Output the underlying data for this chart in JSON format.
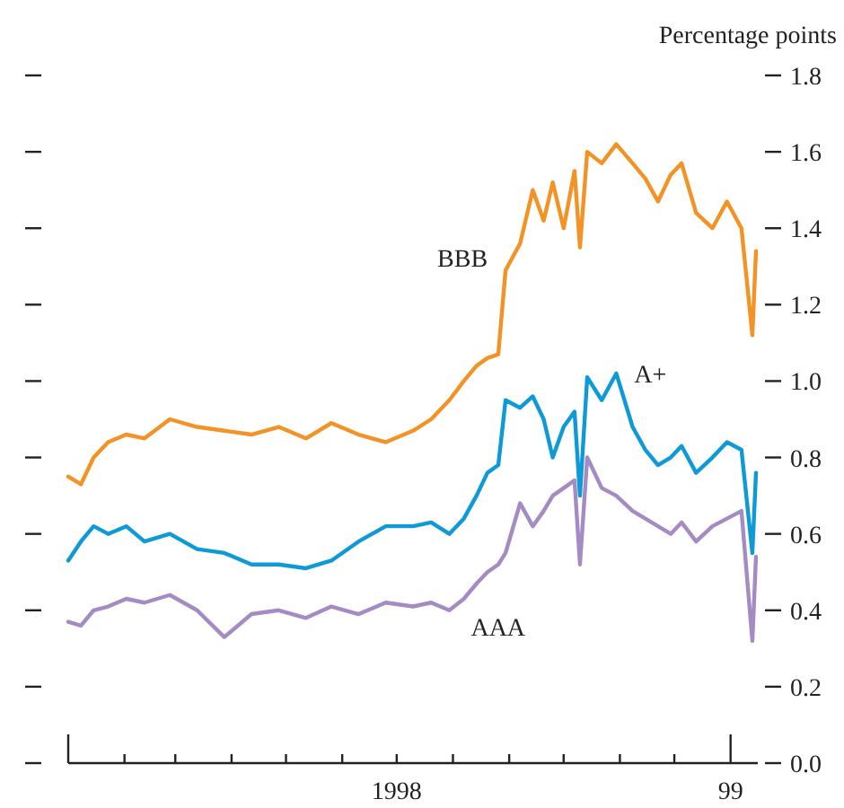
{
  "chart_data": {
    "type": "line",
    "ylabel": "Percentage points",
    "x": [
      "1998-01-01",
      "1998-01-08",
      "1998-01-15",
      "1998-01-23",
      "1998-02-02",
      "1998-02-12",
      "1998-02-26",
      "1998-03-13",
      "1998-03-28",
      "1998-04-12",
      "1998-04-27",
      "1998-05-12",
      "1998-05-26",
      "1998-06-10",
      "1998-06-25",
      "1998-07-10",
      "1998-07-20",
      "1998-07-30",
      "1998-08-07",
      "1998-08-14",
      "1998-08-20",
      "1998-08-26",
      "1998-08-30",
      "1998-09-07",
      "1998-09-14",
      "1998-09-20",
      "1998-09-25",
      "1998-10-01",
      "1998-10-07",
      "1998-10-10",
      "1998-10-14",
      "1998-10-22",
      "1998-10-30",
      "1998-11-08",
      "1998-11-15",
      "1998-11-22",
      "1998-11-29",
      "1998-12-05",
      "1998-12-13",
      "1998-12-22",
      "1998-12-30",
      "1999-01-07",
      "1999-01-13",
      "1999-01-15"
    ],
    "series": [
      {
        "name": "BBB",
        "color": "#f39325",
        "values": [
          0.75,
          0.73,
          0.8,
          0.84,
          0.86,
          0.85,
          0.9,
          0.88,
          0.87,
          0.86,
          0.88,
          0.85,
          0.89,
          0.86,
          0.84,
          0.87,
          0.9,
          0.95,
          1.0,
          1.04,
          1.06,
          1.07,
          1.29,
          1.36,
          1.5,
          1.42,
          1.52,
          1.4,
          1.55,
          1.35,
          1.6,
          1.57,
          1.62,
          1.57,
          1.53,
          1.47,
          1.54,
          1.57,
          1.44,
          1.4,
          1.47,
          1.4,
          1.12,
          1.34
        ]
      },
      {
        "name": "A+",
        "color": "#0e9ad7",
        "values": [
          0.53,
          0.58,
          0.62,
          0.6,
          0.62,
          0.58,
          0.6,
          0.56,
          0.55,
          0.52,
          0.52,
          0.51,
          0.53,
          0.58,
          0.62,
          0.62,
          0.63,
          0.6,
          0.64,
          0.7,
          0.76,
          0.78,
          0.95,
          0.93,
          0.96,
          0.9,
          0.8,
          0.88,
          0.92,
          0.7,
          1.01,
          0.95,
          1.02,
          0.88,
          0.82,
          0.78,
          0.8,
          0.83,
          0.76,
          0.8,
          0.84,
          0.82,
          0.55,
          0.76
        ]
      },
      {
        "name": "AAA",
        "color": "#a48bc3",
        "values": [
          0.37,
          0.36,
          0.4,
          0.41,
          0.43,
          0.42,
          0.44,
          0.4,
          0.33,
          0.39,
          0.4,
          0.38,
          0.41,
          0.39,
          0.42,
          0.41,
          0.42,
          0.4,
          0.43,
          0.47,
          0.5,
          0.52,
          0.55,
          0.68,
          0.62,
          0.66,
          0.7,
          0.72,
          0.74,
          0.52,
          0.8,
          0.72,
          0.7,
          0.66,
          0.64,
          0.62,
          0.6,
          0.63,
          0.58,
          0.62,
          0.64,
          0.66,
          0.32,
          0.54
        ]
      }
    ],
    "xlim": [
      "1998-01-01",
      "1999-01-16"
    ],
    "xticks": [
      {
        "value": "1998-01-01",
        "label": null
      },
      {
        "value": "1998-02-01",
        "label": null
      },
      {
        "value": "1998-03-01",
        "label": null
      },
      {
        "value": "1998-04-01",
        "label": null
      },
      {
        "value": "1998-05-01",
        "label": null
      },
      {
        "value": "1998-06-01",
        "label": null
      },
      {
        "value": "1998-07-01",
        "label": "1998"
      },
      {
        "value": "1998-08-01",
        "label": null
      },
      {
        "value": "1998-09-01",
        "label": null
      },
      {
        "value": "1998-10-01",
        "label": null
      },
      {
        "value": "1998-11-01",
        "label": null
      },
      {
        "value": "1998-12-01",
        "label": null
      },
      {
        "value": "1999-01-01",
        "label": "99"
      }
    ],
    "ylim": [
      0,
      1.8
    ],
    "yticks": [
      {
        "value": 0,
        "label": "0.0"
      },
      0.2,
      0.4,
      0.6,
      0.8,
      {
        "value": 1,
        "label": "1.0"
      },
      1.2,
      1.4,
      1.6,
      1.8
    ],
    "grid": false,
    "marker": "none",
    "line_style": "solid"
  }
}
